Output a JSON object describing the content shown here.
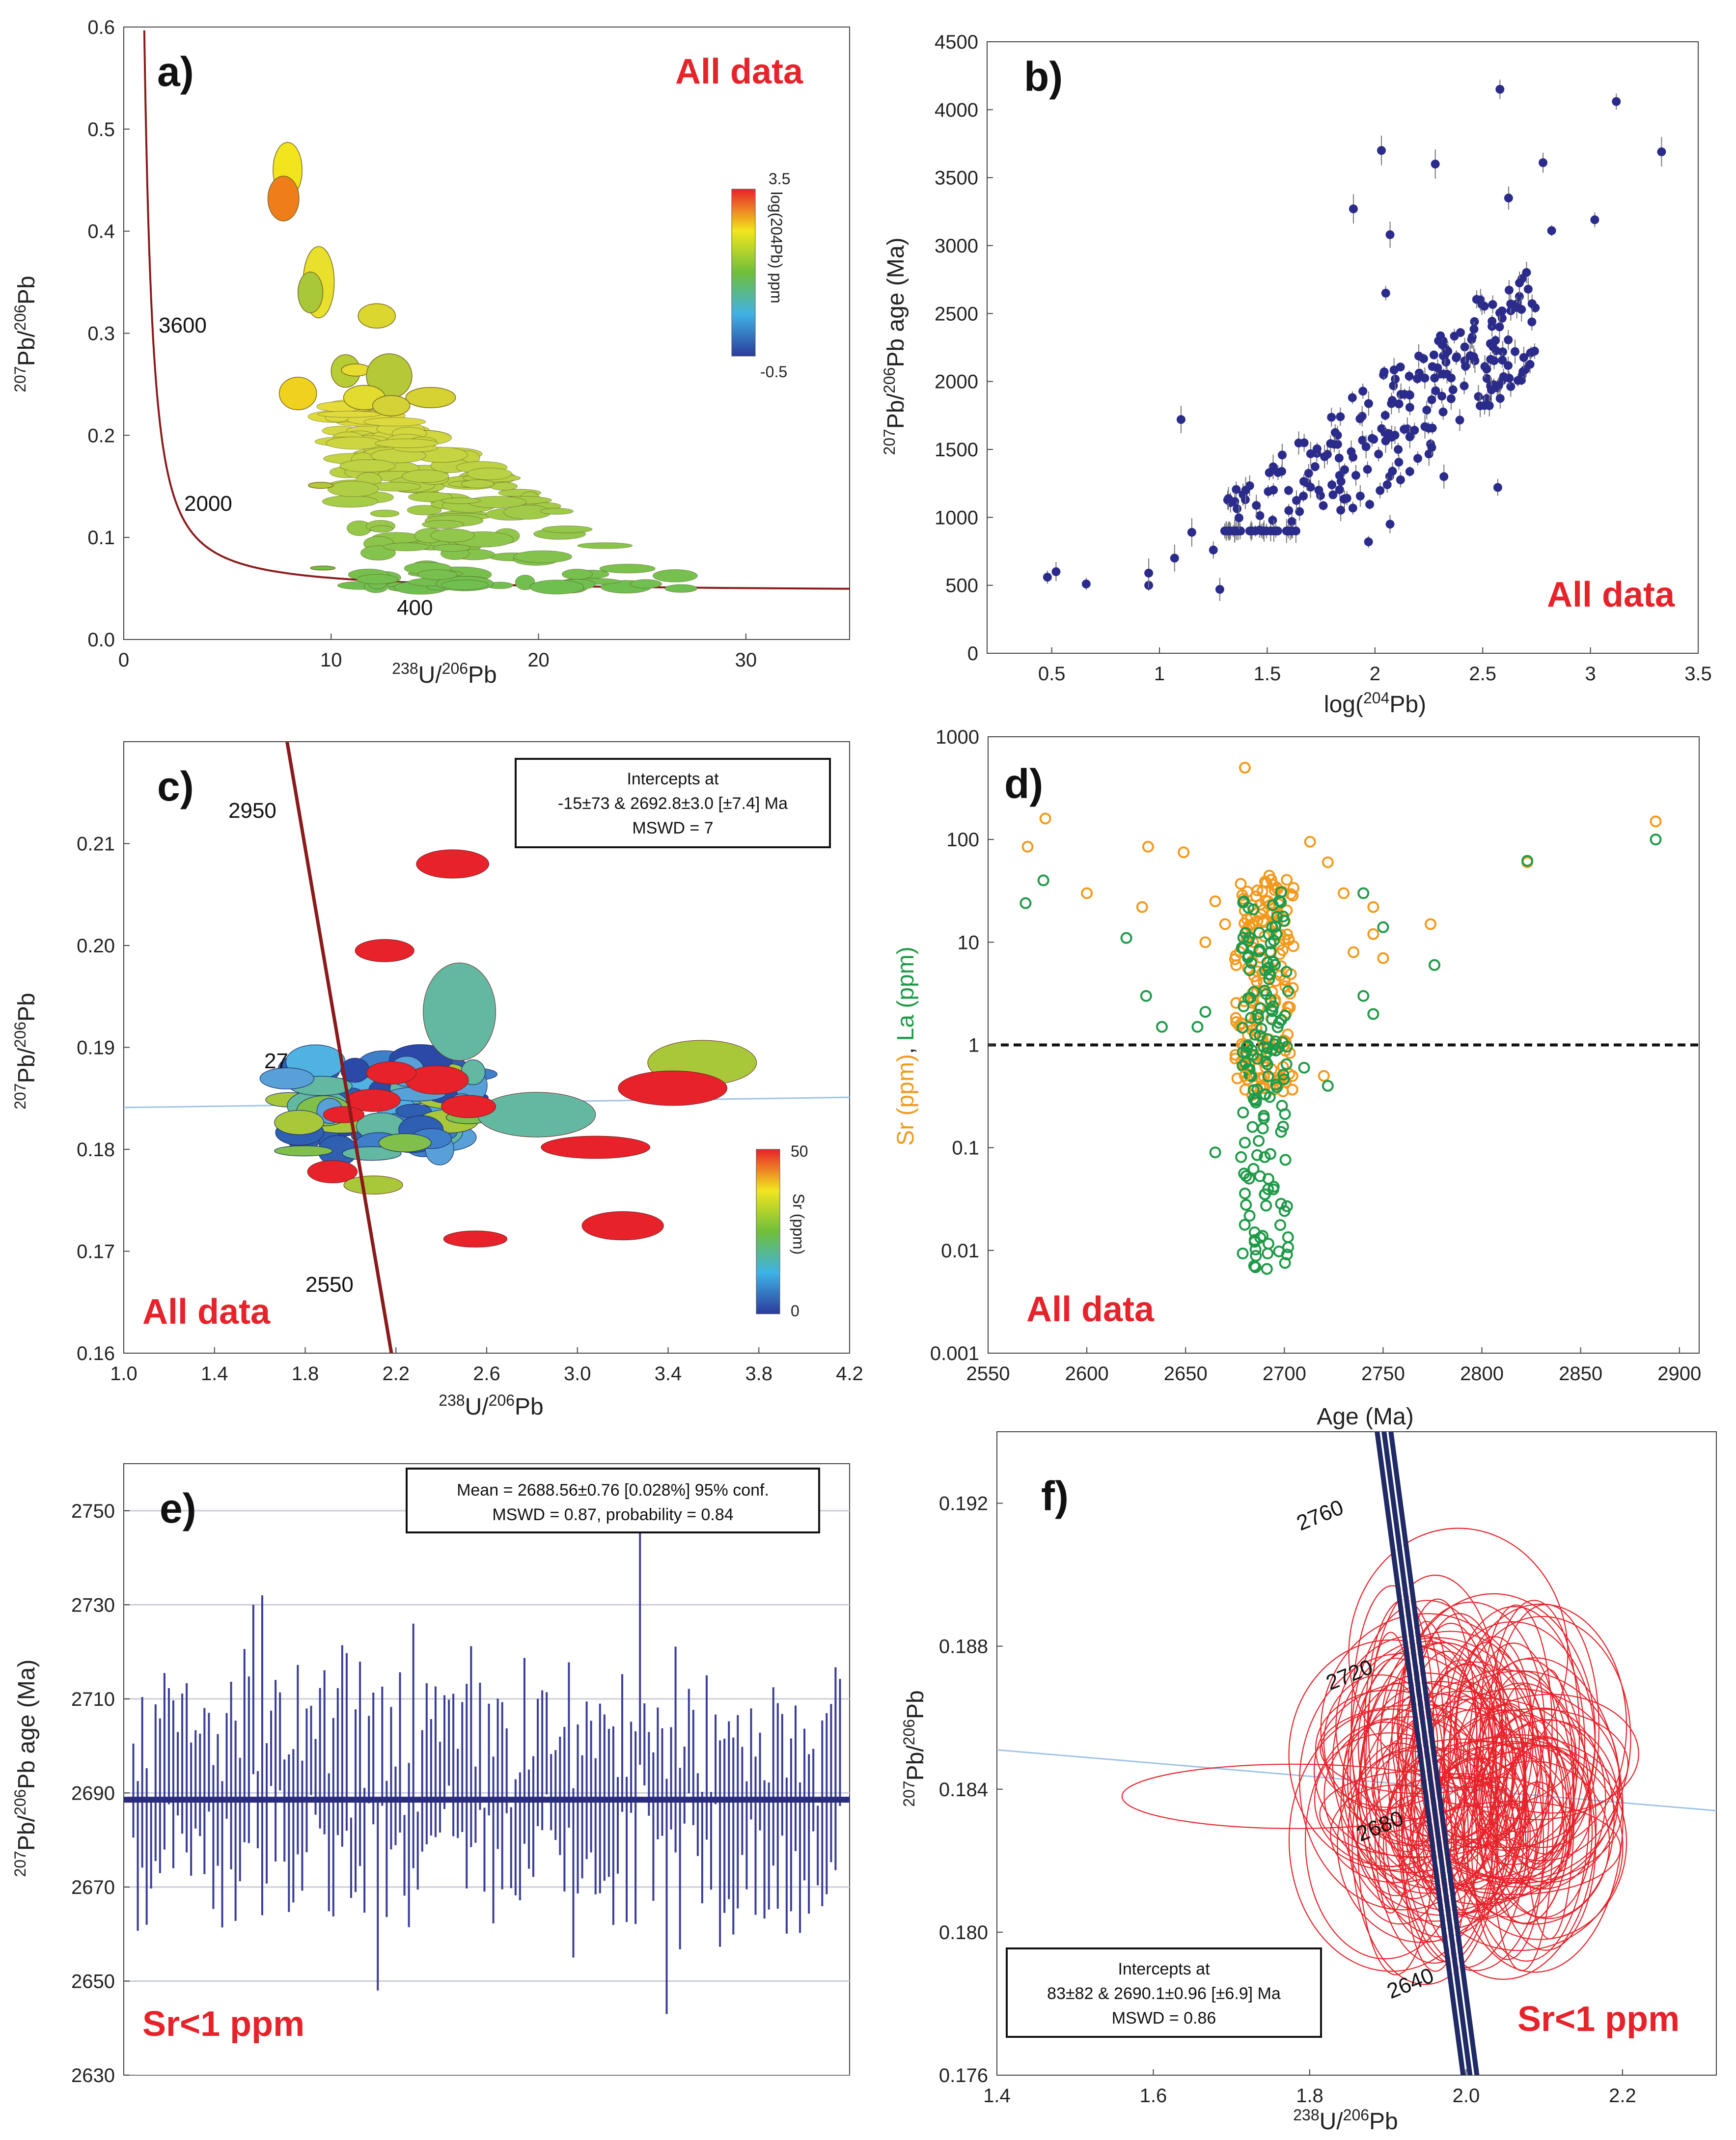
{
  "chart_data": [
    {
      "id": "a",
      "type": "scatter",
      "panel_label": "a)",
      "tag": "All data",
      "xlabel_iso": "238",
      "xlabel_a": "U/",
      "xlabel_iso2": "206",
      "xlabel_b": "Pb",
      "ylabel_iso": "207",
      "ylabel_a": "Pb/",
      "ylabel_iso2": "206",
      "ylabel_b": "Pb",
      "xlim": [
        0,
        35
      ],
      "ylim": [
        0,
        0.6
      ],
      "xticks": [
        "0",
        "10",
        "20",
        "30"
      ],
      "xtick_values": [
        0,
        10,
        20,
        30
      ],
      "yticks": [
        "0.0",
        "0.1",
        "0.2",
        "0.3",
        "0.4",
        "0.5",
        "0.6"
      ],
      "ytick_values": [
        0,
        0.1,
        0.2,
        0.3,
        0.4,
        0.5,
        0.6
      ],
      "concordia_labels": [
        "3600",
        "2000",
        "400"
      ],
      "colorbar": {
        "max_label": "3.5",
        "min_label": "-0.5",
        "title": "log(204Pb) ppm"
      },
      "ellipses": [
        {
          "x": 7.9,
          "y": 0.46,
          "rx": 0.7,
          "ry": 0.027,
          "color": "#f2e51e"
        },
        {
          "x": 7.7,
          "y": 0.432,
          "rx": 0.75,
          "ry": 0.022,
          "color": "#ef7d1a"
        },
        {
          "x": 9.4,
          "y": 0.35,
          "rx": 0.75,
          "ry": 0.035,
          "color": "#e8e02c"
        },
        {
          "x": 9.0,
          "y": 0.34,
          "rx": 0.6,
          "ry": 0.02,
          "color": "#a8c83a"
        },
        {
          "x": 12.2,
          "y": 0.317,
          "rx": 0.9,
          "ry": 0.012,
          "color": "#dcd72e"
        },
        {
          "x": 8.4,
          "y": 0.241,
          "rx": 0.9,
          "ry": 0.016,
          "color": "#f0d21e"
        },
        {
          "x": 10.7,
          "y": 0.263,
          "rx": 0.7,
          "ry": 0.016,
          "color": "#b8cc36"
        },
        {
          "x": 11.2,
          "y": 0.264,
          "rx": 0.7,
          "ry": 0.006,
          "color": "#e8dc30"
        },
        {
          "x": 12.8,
          "y": 0.258,
          "rx": 1.1,
          "ry": 0.022,
          "color": "#b4c838"
        },
        {
          "x": 14.8,
          "y": 0.237,
          "rx": 1.2,
          "ry": 0.01,
          "color": "#d6d232"
        },
        {
          "x": 11.6,
          "y": 0.237,
          "rx": 1.0,
          "ry": 0.012,
          "color": "#e2dc2e"
        },
        {
          "x": 9.5,
          "y": 0.151,
          "rx": 0.6,
          "ry": 0.003,
          "color": "#b4c838"
        },
        {
          "x": 9.6,
          "y": 0.07,
          "rx": 0.6,
          "ry": 0.002,
          "color": "#6fbf4a"
        },
        {
          "x": 12.9,
          "y": 0.229,
          "rx": 0.9,
          "ry": 0.01,
          "color": "#d4d236"
        }
      ],
      "cloud": {
        "x_range": [
          10,
          30
        ],
        "y_range": [
          0.05,
          0.23
        ],
        "count": 150
      }
    },
    {
      "id": "b",
      "type": "scatter",
      "panel_label": "b)",
      "tag": "All data",
      "xlabel_a": "log(",
      "xlabel_iso": "204",
      "xlabel_b": "Pb)",
      "ylabel_iso": "207",
      "ylabel_a": "Pb/",
      "ylabel_iso2": "206",
      "ylabel_b": "Pb age (Ma)",
      "xlim": [
        0.2,
        3.5
      ],
      "ylim": [
        0,
        4500
      ],
      "xticks": [
        "0.5",
        "1",
        "1.5",
        "2",
        "2.5",
        "3",
        "3.5"
      ],
      "xtick_values": [
        0.5,
        1,
        1.5,
        2,
        2.5,
        3,
        3.5
      ],
      "yticks": [
        "0",
        "500",
        "1000",
        "1500",
        "2000",
        "2500",
        "3000",
        "3500",
        "4000",
        "4500"
      ],
      "ytick_values": [
        0,
        500,
        1000,
        1500,
        2000,
        2500,
        3000,
        3500,
        4000,
        4500
      ],
      "points": [
        {
          "x": 0.48,
          "y": 560
        },
        {
          "x": 0.52,
          "y": 600
        },
        {
          "x": 0.66,
          "y": 510
        },
        {
          "x": 0.95,
          "y": 500
        },
        {
          "x": 0.95,
          "y": 590
        },
        {
          "x": 1.07,
          "y": 700
        },
        {
          "x": 1.1,
          "y": 1720
        },
        {
          "x": 1.15,
          "y": 890
        },
        {
          "x": 1.25,
          "y": 760
        },
        {
          "x": 1.28,
          "y": 470
        },
        {
          "x": 1.35,
          "y": 900
        },
        {
          "x": 1.4,
          "y": 1200
        },
        {
          "x": 1.55,
          "y": 1330
        },
        {
          "x": 1.6,
          "y": 1050
        },
        {
          "x": 1.9,
          "y": 3270
        },
        {
          "x": 2.03,
          "y": 3700
        },
        {
          "x": 2.07,
          "y": 3080
        },
        {
          "x": 2.05,
          "y": 2650
        },
        {
          "x": 2.28,
          "y": 3600
        },
        {
          "x": 2.58,
          "y": 4150
        },
        {
          "x": 2.78,
          "y": 3610
        },
        {
          "x": 2.62,
          "y": 3350
        },
        {
          "x": 3.12,
          "y": 4060
        },
        {
          "x": 3.33,
          "y": 3690
        },
        {
          "x": 3.02,
          "y": 3190
        },
        {
          "x": 2.82,
          "y": 3110
        },
        {
          "x": 1.97,
          "y": 820
        },
        {
          "x": 2.07,
          "y": 950
        },
        {
          "x": 2.32,
          "y": 1300
        },
        {
          "x": 2.57,
          "y": 1220
        },
        {
          "x": 2.65,
          "y": 2220
        },
        {
          "x": 2.68,
          "y": 2530
        }
      ],
      "cloud": {
        "x_range": [
          1.3,
          2.75
        ],
        "y_range": [
          1000,
          3000
        ],
        "count": 260
      }
    },
    {
      "id": "c",
      "type": "scatter",
      "panel_label": "c)",
      "tag": "All data",
      "xlabel_iso": "238",
      "xlabel_a": "U/",
      "xlabel_iso2": "206",
      "xlabel_b": "Pb",
      "ylabel_iso": "207",
      "ylabel_a": "Pb/",
      "ylabel_iso2": "206",
      "ylabel_b": "Pb",
      "xlim": [
        1.0,
        4.2
      ],
      "ylim": [
        0.16,
        0.22
      ],
      "xticks": [
        "1.0",
        "1.4",
        "1.8",
        "2.2",
        "2.6",
        "3.0",
        "3.4",
        "3.8",
        "4.2"
      ],
      "xtick_values": [
        1.0,
        1.4,
        1.8,
        2.2,
        2.6,
        3.0,
        3.4,
        3.8,
        4.2
      ],
      "yticks": [
        "0.16",
        "0.17",
        "0.18",
        "0.19",
        "0.20",
        "0.21"
      ],
      "ytick_values": [
        0.16,
        0.17,
        0.18,
        0.19,
        0.2,
        0.21
      ],
      "concordia_labels": [
        "2950",
        "2550",
        "27"
      ],
      "annotation": [
        "Intercepts at",
        "-15±73 & 2692.8±3.0 [±7.4] Ma",
        "MSWD = 7"
      ],
      "colorbar": {
        "max_label": "50",
        "min_label": "0",
        "title": "Sr (ppm)"
      },
      "ellipses": [
        {
          "x": 2.45,
          "y": 0.208,
          "rx": 0.16,
          "ry": 0.0014,
          "color": "#e8222a"
        },
        {
          "x": 2.15,
          "y": 0.1995,
          "rx": 0.13,
          "ry": 0.0011,
          "color": "#e8222a"
        },
        {
          "x": 2.48,
          "y": 0.1935,
          "rx": 0.16,
          "ry": 0.0048,
          "color": "#62b8a0"
        },
        {
          "x": 3.55,
          "y": 0.1885,
          "rx": 0.24,
          "ry": 0.0022,
          "color": "#a8c83a"
        },
        {
          "x": 3.42,
          "y": 0.186,
          "rx": 0.24,
          "ry": 0.0017,
          "color": "#e8222a"
        },
        {
          "x": 2.82,
          "y": 0.1834,
          "rx": 0.26,
          "ry": 0.0022,
          "color": "#62b8a0"
        },
        {
          "x": 3.08,
          "y": 0.1802,
          "rx": 0.24,
          "ry": 0.0011,
          "color": "#e8222a"
        },
        {
          "x": 3.2,
          "y": 0.1725,
          "rx": 0.18,
          "ry": 0.0014,
          "color": "#e8222a"
        },
        {
          "x": 2.55,
          "y": 0.1712,
          "rx": 0.14,
          "ry": 0.0008,
          "color": "#e8222a"
        },
        {
          "x": 1.92,
          "y": 0.1778,
          "rx": 0.11,
          "ry": 0.0011,
          "color": "#e8222a"
        },
        {
          "x": 2.1,
          "y": 0.1765,
          "rx": 0.13,
          "ry": 0.0009,
          "color": "#a8c83a"
        },
        {
          "x": 2.38,
          "y": 0.1868,
          "rx": 0.14,
          "ry": 0.0014,
          "color": "#e8222a"
        },
        {
          "x": 2.52,
          "y": 0.1842,
          "rx": 0.12,
          "ry": 0.0011,
          "color": "#e8222a"
        },
        {
          "x": 2.1,
          "y": 0.1848,
          "rx": 0.12,
          "ry": 0.0011,
          "color": "#e8222a"
        },
        {
          "x": 2.18,
          "y": 0.1875,
          "rx": 0.11,
          "ry": 0.0011,
          "color": "#e8222a"
        },
        {
          "x": 1.97,
          "y": 0.1834,
          "rx": 0.09,
          "ry": 0.0008,
          "color": "#e8222a"
        }
      ],
      "cloud": {
        "x_range": [
          1.7,
          2.55
        ],
        "y_range": [
          0.1775,
          0.1915
        ],
        "count": 70
      }
    },
    {
      "id": "d",
      "type": "scatter",
      "panel_label": "d)",
      "tag": "All data",
      "xlabel": "Age (Ma)",
      "ylabel_sr": "Sr (ppm)",
      "ylabel_sep": ", ",
      "ylabel_la": "La (ppm)",
      "xlim": [
        2550,
        2910
      ],
      "ylim_log": [
        -3,
        3
      ],
      "xticks": [
        "2550",
        "2600",
        "2650",
        "2700",
        "2750",
        "2800",
        "2850",
        "2900"
      ],
      "xtick_values": [
        2550,
        2600,
        2650,
        2700,
        2750,
        2800,
        2850,
        2900
      ],
      "yticks": [
        "0.001",
        "0.01",
        "0.1",
        "1",
        "10",
        "100",
        "1000"
      ],
      "ytick_values": [
        0.001,
        0.01,
        0.1,
        1,
        10,
        100,
        1000
      ],
      "threshold": 1,
      "series": [
        {
          "name": "Sr (ppm)",
          "color": "#f39a1e",
          "points": [
            [
              2570,
              85
            ],
            [
              2579,
              160
            ],
            [
              2600,
              30
            ],
            [
              2631,
              85
            ],
            [
              2628,
              22
            ],
            [
              2649,
              75
            ],
            [
              2665,
              25
            ],
            [
              2680,
              500
            ],
            [
              2713,
              95
            ],
            [
              2722,
              60
            ],
            [
              2730,
              30
            ],
            [
              2745,
              22
            ],
            [
              2745,
              12
            ],
            [
              2774,
              15
            ],
            [
              2823,
              60
            ],
            [
              2888,
              150
            ],
            [
              2660,
              10
            ],
            [
              2670,
              15
            ],
            [
              2735,
              8
            ],
            [
              2750,
              7
            ],
            [
              2720,
              0.5
            ],
            [
              2680,
              0.5
            ]
          ]
        },
        {
          "name": "La (ppm)",
          "color": "#1f9a48",
          "points": [
            [
              2569,
              24
            ],
            [
              2578,
              40
            ],
            [
              2620,
              11
            ],
            [
              2638,
              1.5
            ],
            [
              2630,
              3
            ],
            [
              2656,
              1.5
            ],
            [
              2665,
              0.09
            ],
            [
              2660,
              2.1
            ],
            [
              2710,
              0.6
            ],
            [
              2722,
              0.4
            ],
            [
              2740,
              3
            ],
            [
              2745,
              2
            ],
            [
              2776,
              6
            ],
            [
              2823,
              62
            ],
            [
              2888,
              100
            ],
            [
              2740,
              30
            ],
            [
              2750,
              14
            ]
          ]
        }
      ],
      "cloud": {
        "x_range": [
          2675,
          2705
        ],
        "count": 160
      }
    },
    {
      "id": "e",
      "type": "bar",
      "panel_label": "e)",
      "tag": "Sr<1 ppm",
      "ylabel_iso": "207",
      "ylabel_a": "Pb/",
      "ylabel_iso2": "206",
      "ylabel_b": "Pb age (Ma)",
      "ylim": [
        2630,
        2760
      ],
      "yticks": [
        "2630",
        "2650",
        "2670",
        "2690",
        "2710",
        "2730",
        "2750"
      ],
      "ytick_values": [
        2630,
        2650,
        2670,
        2690,
        2710,
        2730,
        2750
      ],
      "mean": 2688.56,
      "annotation": [
        "Mean = 2688.56±0.76 [0.028%] 95% conf.",
        "MSWD = 0.87, probability = 0.84"
      ],
      "n_bars": 160,
      "bar_center_range": [
        2675,
        2702
      ],
      "special_bars": [
        {
          "i": 27,
          "c": 2712,
          "h": 18
        },
        {
          "i": 29,
          "c": 2698,
          "h": 34
        },
        {
          "i": 55,
          "c": 2668,
          "h": 20
        },
        {
          "i": 63,
          "c": 2700,
          "h": 26
        },
        {
          "i": 99,
          "c": 2673,
          "h": 18
        },
        {
          "i": 114,
          "c": 2726,
          "h": 30
        },
        {
          "i": 120,
          "c": 2668,
          "h": 25
        }
      ]
    },
    {
      "id": "f",
      "type": "scatter",
      "panel_label": "f)",
      "tag": "Sr<1 ppm",
      "xlabel_iso": "238",
      "xlabel_a": "U/",
      "xlabel_iso2": "206",
      "xlabel_b": "Pb",
      "ylabel_iso": "207",
      "ylabel_a": "Pb/",
      "ylabel_iso2": "206",
      "ylabel_b": "Pb",
      "xlim": [
        1.4,
        2.32
      ],
      "ylim": [
        0.176,
        0.194
      ],
      "xticks": [
        "1.4",
        "1.6",
        "1.8",
        "2.0",
        "2.2"
      ],
      "xtick_values": [
        1.4,
        1.6,
        1.8,
        2.0,
        2.2
      ],
      "yticks": [
        "0.176",
        "0.180",
        "0.184",
        "0.188",
        "0.192"
      ],
      "ytick_values": [
        0.176,
        0.18,
        0.184,
        0.188,
        0.192
      ],
      "concordia_labels": [
        "2760",
        "2720",
        "2680",
        "2640"
      ],
      "annotation": [
        "Intercepts at",
        "83±82 & 2690.1±0.96 [±6.9] Ma",
        "MSWD = 0.86"
      ],
      "ellipse_center": [
        2.0,
        0.1841
      ],
      "ellipse_count": 110
    }
  ]
}
